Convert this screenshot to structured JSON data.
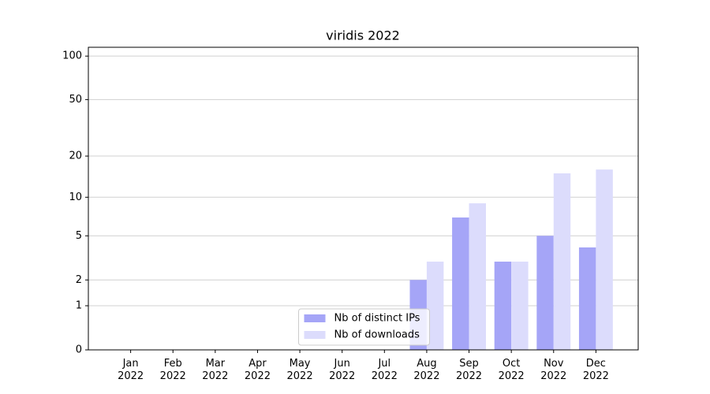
{
  "chart_data": {
    "type": "bar",
    "title": "viridis 2022",
    "categories": [
      "Jan 2022",
      "Feb 2022",
      "Mar 2022",
      "Apr 2022",
      "May 2022",
      "Jun 2022",
      "Jul 2022",
      "Aug 2022",
      "Sep 2022",
      "Oct 2022",
      "Nov 2022",
      "Dec 2022"
    ],
    "series": [
      {
        "name": "Nb of distinct IPs",
        "color": "#a5a5f7",
        "values": [
          0,
          0,
          0,
          0,
          0,
          0,
          0,
          2,
          7,
          3,
          5,
          4
        ]
      },
      {
        "name": "Nb of downloads",
        "color": "#dcdcfc",
        "values": [
          0,
          0,
          0,
          0,
          0,
          0,
          0,
          3,
          9,
          3,
          15,
          16
        ]
      }
    ],
    "yscale": "log1p",
    "ylim": [
      0,
      115
    ],
    "yticks": [
      0,
      1,
      2,
      5,
      10,
      20,
      50,
      100
    ],
    "grid": true,
    "legend": "lower center"
  }
}
